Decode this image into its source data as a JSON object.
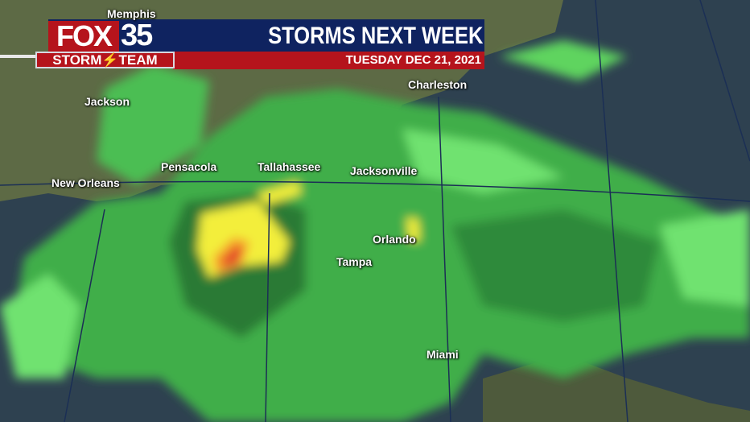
{
  "header": {
    "brand_fox": "FOX",
    "brand_number": "35",
    "brand_team": "STORM⚡TEAM",
    "title": "STORMS NEXT WEEK",
    "date": "TUESDAY  DEC 21, 2021"
  },
  "colors": {
    "navy": "#0f2360",
    "red": "#b5141c",
    "radar_light": "#6fe26f",
    "radar_mid": "#3fae48",
    "radar_dark": "#2a7a35",
    "radar_yellow": "#f3ee3a",
    "radar_orange": "#f59a2a",
    "radar_red": "#e0312a"
  },
  "cities": [
    "Memphis",
    "Jackson",
    "Pensacola",
    "Tallahassee",
    "Jacksonville",
    "Charleston",
    "New Orleans",
    "Orlando",
    "Tampa",
    "Miami"
  ]
}
